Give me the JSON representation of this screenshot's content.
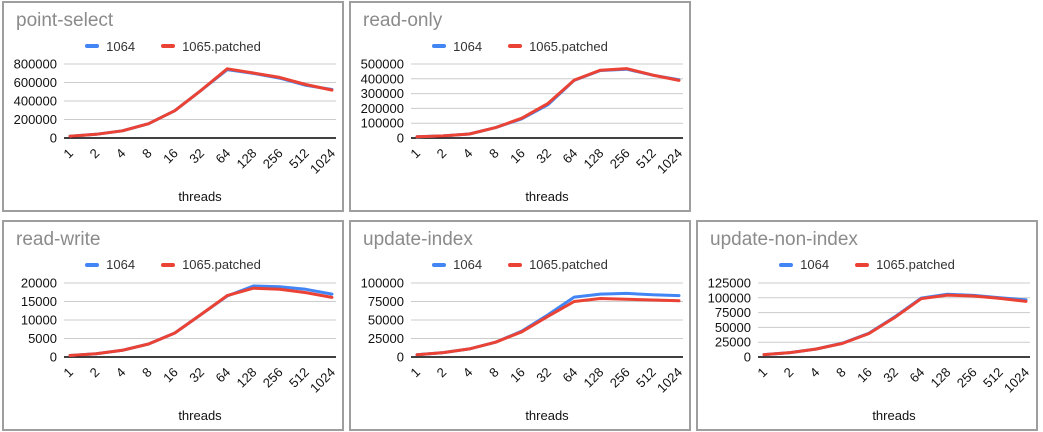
{
  "style": {
    "background": "#ffffff",
    "box_border_color": "#9e9e9e",
    "title_color": "#8b8b8b",
    "grid_color": "#cccccc",
    "axis_color": "#000000",
    "tick_color": "#111111",
    "series_blue": "#4285F4",
    "series_red": "#EA4335"
  },
  "legend": {
    "items": [
      {
        "label": "1064",
        "color": "#4285F4"
      },
      {
        "label": "1065.patched",
        "color": "#EA4335"
      }
    ],
    "position": "top-center"
  },
  "chart_data": [
    {
      "type": "line",
      "title": "point-select",
      "xlabel": "threads",
      "grid": true,
      "categories": [
        "1",
        "2",
        "4",
        "8",
        "16",
        "32",
        "64",
        "128",
        "256",
        "512",
        "1024"
      ],
      "ylim": [
        0,
        800000
      ],
      "yticks": [
        0,
        200000,
        400000,
        600000,
        800000
      ],
      "series": [
        {
          "name": "1064",
          "color": "#4285F4",
          "values": [
            20000,
            40000,
            78000,
            155000,
            295000,
            515000,
            738000,
            698000,
            648000,
            570000,
            524000
          ]
        },
        {
          "name": "1065.patched",
          "color": "#EA4335",
          "values": [
            20000,
            40000,
            78000,
            155000,
            295000,
            515000,
            748000,
            703000,
            655000,
            578000,
            518000
          ]
        }
      ]
    },
    {
      "type": "line",
      "title": "read-only",
      "xlabel": "threads",
      "grid": true,
      "categories": [
        "1",
        "2",
        "4",
        "8",
        "16",
        "32",
        "64",
        "128",
        "256",
        "512",
        "1024"
      ],
      "ylim": [
        0,
        500000
      ],
      "yticks": [
        0,
        100000,
        200000,
        300000,
        400000,
        500000
      ],
      "series": [
        {
          "name": "1064",
          "color": "#4285F4",
          "values": [
            8000,
            14000,
            27000,
            70000,
            130000,
            225000,
            390000,
            456000,
            465000,
            424000,
            394000
          ]
        },
        {
          "name": "1065.patched",
          "color": "#EA4335",
          "values": [
            8000,
            14000,
            27000,
            70000,
            134000,
            234000,
            391000,
            458000,
            469000,
            425000,
            389000
          ]
        }
      ]
    },
    {
      "type": "line",
      "title": "read-write",
      "xlabel": "threads",
      "grid": true,
      "categories": [
        "1",
        "2",
        "4",
        "8",
        "16",
        "32",
        "64",
        "128",
        "256",
        "512",
        "1024"
      ],
      "ylim": [
        0,
        20000
      ],
      "yticks": [
        0,
        5000,
        10000,
        15000,
        20000
      ],
      "series": [
        {
          "name": "1064",
          "color": "#4285F4",
          "values": [
            400,
            900,
            1800,
            3500,
            6500,
            11500,
            16500,
            19200,
            19000,
            18300,
            17000
          ]
        },
        {
          "name": "1065.patched",
          "color": "#EA4335",
          "values": [
            400,
            900,
            1800,
            3500,
            6500,
            11500,
            16600,
            18600,
            18300,
            17400,
            16100
          ]
        }
      ]
    },
    {
      "type": "line",
      "title": "update-index",
      "xlabel": "threads",
      "grid": true,
      "categories": [
        "1",
        "2",
        "4",
        "8",
        "16",
        "32",
        "64",
        "128",
        "256",
        "512",
        "1024"
      ],
      "ylim": [
        0,
        100000
      ],
      "yticks": [
        0,
        25000,
        50000,
        75000,
        100000
      ],
      "series": [
        {
          "name": "1064",
          "color": "#4285F4",
          "values": [
            3000,
            6000,
            11000,
            20000,
            35000,
            57000,
            81000,
            85000,
            86000,
            84000,
            83000
          ]
        },
        {
          "name": "1065.patched",
          "color": "#EA4335",
          "values": [
            3000,
            6000,
            11000,
            20000,
            34000,
            55000,
            75000,
            79000,
            78000,
            77000,
            76000
          ]
        }
      ]
    },
    {
      "type": "line",
      "title": "update-non-index",
      "xlabel": "threads",
      "grid": true,
      "categories": [
        "1",
        "2",
        "4",
        "8",
        "16",
        "32",
        "64",
        "128",
        "256",
        "512",
        "1024"
      ],
      "ylim": [
        0,
        125000
      ],
      "yticks": [
        0,
        25000,
        50000,
        75000,
        100000,
        125000
      ],
      "series": [
        {
          "name": "1064",
          "color": "#4285F4",
          "values": [
            4000,
            7500,
            13500,
            23500,
            40000,
            68000,
            99500,
            106000,
            104000,
            100000,
            96500
          ]
        },
        {
          "name": "1065.patched",
          "color": "#EA4335",
          "values": [
            4000,
            7500,
            13500,
            23000,
            39500,
            67000,
            98500,
            104500,
            103000,
            99000,
            94000
          ]
        }
      ]
    }
  ]
}
